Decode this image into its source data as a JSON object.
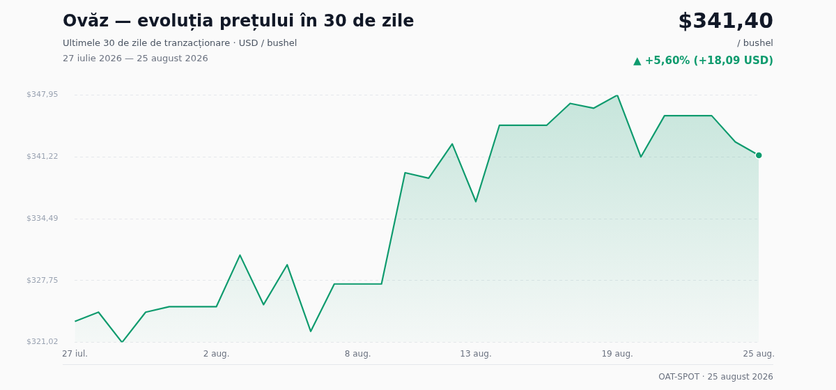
{
  "chart_data": {
    "type": "area",
    "title": "Ovăz — evoluția prețului în 30 de zile",
    "subtitle": "Ultimele 30 de zile de tranzacționare · USD / bushel",
    "annotations": [
      "27 iulie 2026 — 25 august 2026",
      "$341,40",
      "/ bushel",
      "▲ +5,60% (+18,09 USD)",
      "OAT-SPOT · 25 august 2026"
    ],
    "categories": [
      "27 iul.",
      null,
      null,
      null,
      null,
      null,
      "2 aug.",
      null,
      null,
      null,
      null,
      null,
      "8 aug.",
      null,
      null,
      null,
      null,
      "13 aug.",
      null,
      null,
      null,
      null,
      null,
      "19 aug.",
      null,
      null,
      null,
      null,
      null,
      "25 aug."
    ],
    "series": [
      {
        "color": "#0f9b6e",
        "values": [
          323.31,
          324.31,
          321.02,
          324.31,
          324.91,
          324.91,
          324.91,
          330.52,
          325.13,
          329.47,
          322.22,
          327.38,
          327.38,
          327.38,
          339.5,
          338.9,
          342.64,
          336.35,
          344.66,
          344.66,
          344.66,
          347.05,
          346.53,
          347.95,
          341.22,
          345.71,
          345.71,
          345.71,
          342.86,
          341.4
        ]
      }
    ],
    "ylim": [
      321.02,
      347.95
    ],
    "yticks": [
      {
        "value": 321.02,
        "label": "$321,02"
      },
      {
        "value": 327.75,
        "label": "$327,75"
      },
      {
        "value": 334.49,
        "label": "$334,49"
      },
      {
        "value": 341.22,
        "label": "$341,22"
      },
      {
        "value": 347.95,
        "label": "$347,95"
      }
    ],
    "grid": "y",
    "legend": false
  }
}
